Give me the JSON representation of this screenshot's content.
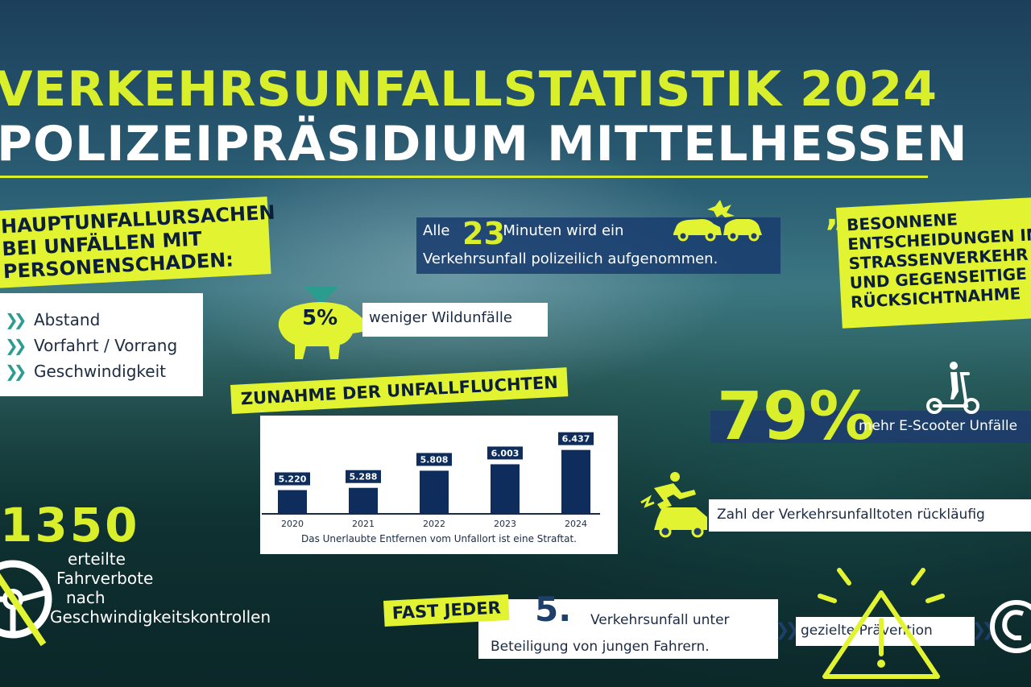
{
  "title": {
    "line1": "VERKEHRSUNFALLSTATISTIK 2024",
    "line2": "POLIZEIPRÄSIDIUM MITTELHESSEN"
  },
  "causes": {
    "title": "HAUPTUNFALLURSACHEN BEI UNFÄLLEN MIT PERSONENSCHADEN:",
    "items": [
      "Abstand",
      "Vorfahrt / Vorrang",
      "Geschwindigkeit"
    ]
  },
  "minutes": {
    "prefix": "Alle",
    "number": "23",
    "suffix": "Minuten wird ein",
    "line2": "Verkehrsunfall polizeilich aufgenommen."
  },
  "wildlife": {
    "percent": "5%",
    "text": "weniger Wildunfälle"
  },
  "quote": {
    "mark": "„",
    "text": "BESONNENE ENTSCHEIDUNGEN IM STRASSENVERKEHR UND GEGENSEITIGE RÜCKSICHTNAHME"
  },
  "hitrun": {
    "title": "ZUNAHME DER UNFALLFLUCHTEN",
    "caption": "Das Unerlaubte Entfernen vom Unfallort ist eine Straftat."
  },
  "chart_data": {
    "type": "bar",
    "title": "ZUNAHME DER UNFALLFLUCHTEN",
    "categories": [
      "2020",
      "2021",
      "2022",
      "2023",
      "2024"
    ],
    "values": [
      5220,
      5288,
      5808,
      6003,
      6437
    ],
    "value_labels": [
      "5.220",
      "5.288",
      "5.808",
      "6.003",
      "6.437"
    ],
    "ylim": [
      4500,
      6600
    ],
    "grid": false,
    "colors": {
      "bar": "#0f2d5c",
      "label_bg": "#0f2d5c",
      "label_text": "#ffffff"
    }
  },
  "escooter": {
    "percent": "79%",
    "text": "mehr E-Scooter Unfälle"
  },
  "deaths": {
    "text": "Zahl der Verkehrsunfalltoten rückläufig"
  },
  "speed_bans": {
    "number": "1350",
    "lines": [
      "erteilte",
      "Fahrverbote",
      "nach",
      "Geschwindigkeitskontrollen"
    ]
  },
  "young": {
    "title": "FAST JEDER",
    "number": "5.",
    "line1": "Verkehrsunfall unter",
    "line2": "Beteiligung von jungen Fahrern."
  },
  "prevention": {
    "text": "gezielte Prävention"
  },
  "colors": {
    "accent_yellow": "#d9ef2b",
    "navy": "#0f2d5c",
    "teal": "#2a9d8f"
  }
}
